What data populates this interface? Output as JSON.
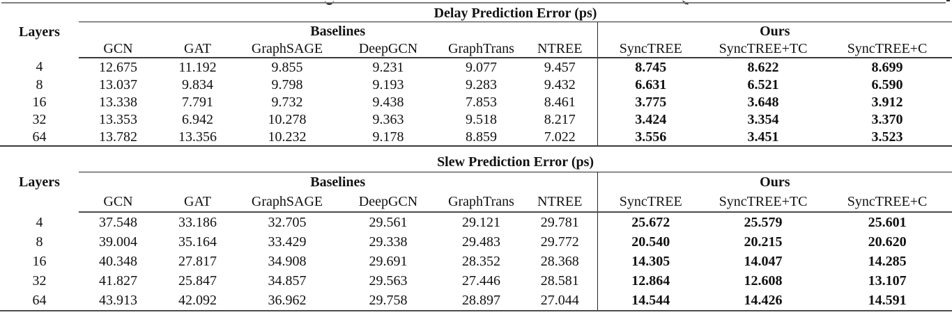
{
  "table": {
    "row_header_label": "Layers",
    "groups": {
      "baselines": "Baselines",
      "ours": "Ours"
    },
    "baseline_columns": [
      "GCN",
      "GAT",
      "GraphSAGE",
      "DeepGCN",
      "GraphTrans",
      "NTREE"
    ],
    "ours_columns": [
      "SyncTREE",
      "SyncTREE+TC",
      "SyncTREE+C"
    ],
    "sections": [
      {
        "title": "Delay Prediction Error (ps)",
        "rows": [
          {
            "layers": "4",
            "baselines": [
              "12.675",
              "11.192",
              "9.855",
              "9.231",
              "9.077",
              "9.457"
            ],
            "ours": [
              "8.745",
              "8.622",
              "8.699"
            ]
          },
          {
            "layers": "8",
            "baselines": [
              "13.037",
              "9.834",
              "9.798",
              "9.193",
              "9.283",
              "9.432"
            ],
            "ours": [
              "6.631",
              "6.521",
              "6.590"
            ]
          },
          {
            "layers": "16",
            "baselines": [
              "13.338",
              "7.791",
              "9.732",
              "9.438",
              "7.853",
              "8.461"
            ],
            "ours": [
              "3.775",
              "3.648",
              "3.912"
            ]
          },
          {
            "layers": "32",
            "baselines": [
              "13.353",
              "6.942",
              "10.278",
              "9.363",
              "9.518",
              "8.217"
            ],
            "ours": [
              "3.424",
              "3.354",
              "3.370"
            ]
          },
          {
            "layers": "64",
            "baselines": [
              "13.782",
              "13.356",
              "10.232",
              "9.178",
              "8.859",
              "7.022"
            ],
            "ours": [
              "3.556",
              "3.451",
              "3.523"
            ]
          }
        ]
      },
      {
        "title": "Slew Prediction Error (ps)",
        "rows": [
          {
            "layers": "4",
            "baselines": [
              "37.548",
              "33.186",
              "32.705",
              "29.561",
              "29.121",
              "29.781"
            ],
            "ours": [
              "25.672",
              "25.579",
              "25.601"
            ]
          },
          {
            "layers": "8",
            "baselines": [
              "39.004",
              "35.164",
              "33.429",
              "29.338",
              "29.483",
              "29.772"
            ],
            "ours": [
              "20.540",
              "20.215",
              "20.620"
            ]
          },
          {
            "layers": "16",
            "baselines": [
              "40.348",
              "27.817",
              "34.908",
              "29.691",
              "28.352",
              "28.368"
            ],
            "ours": [
              "14.305",
              "14.047",
              "14.285"
            ]
          },
          {
            "layers": "32",
            "baselines": [
              "41.827",
              "25.847",
              "34.857",
              "29.563",
              "27.446",
              "28.581"
            ],
            "ours": [
              "12.864",
              "12.608",
              "13.107"
            ]
          },
          {
            "layers": "64",
            "baselines": [
              "43.913",
              "42.092",
              "36.962",
              "29.758",
              "28.897",
              "27.044"
            ],
            "ours": [
              "14.544",
              "14.426",
              "14.591"
            ]
          }
        ]
      }
    ]
  }
}
